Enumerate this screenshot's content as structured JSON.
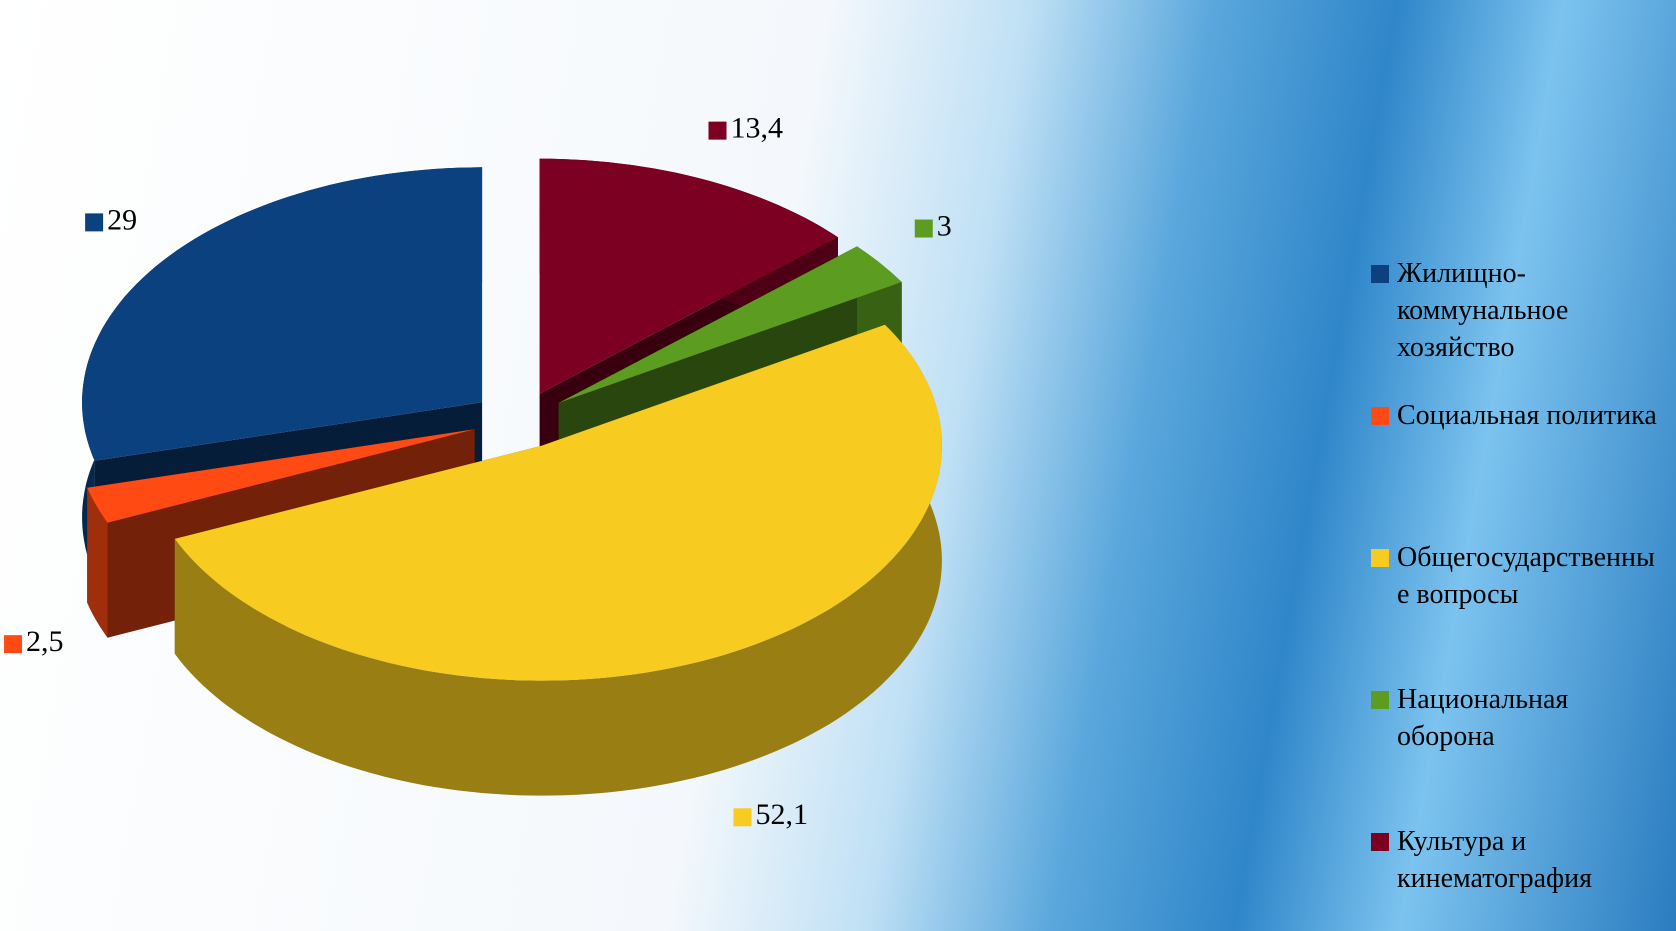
{
  "chart_data": {
    "type": "pie",
    "categories": [
      "Жилищно-коммунальное хозяйство",
      "Социальная политика",
      "Общегосударственные вопросы",
      "Национальная оборона",
      "Культура и кинематография"
    ],
    "values": [
      29,
      2.5,
      52.1,
      3,
      13.4
    ],
    "value_labels": [
      "29",
      "2,5",
      "52,1",
      "3",
      "13,4"
    ],
    "colors": [
      "#0b417e",
      "#ff4a14",
      "#f7cb20",
      "#5c9c20",
      "#7c0022"
    ],
    "legend": "right"
  }
}
